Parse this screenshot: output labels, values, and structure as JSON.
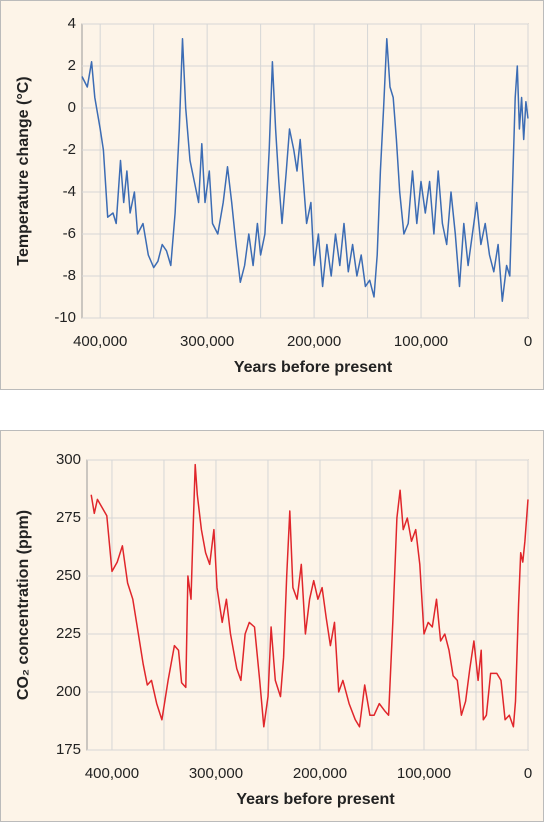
{
  "chart_data": [
    {
      "type": "line",
      "ylabel": "Temperature change (°C)",
      "xlabel": "Years before present",
      "xlim": [
        417000,
        0
      ],
      "ylim": [
        -10,
        4
      ],
      "xticks": [
        {
          "value": 400000,
          "label": "400,000"
        },
        {
          "value": 300000,
          "label": "300,000"
        },
        {
          "value": 200000,
          "label": "200,000"
        },
        {
          "value": 100000,
          "label": "100,000"
        },
        0
      ],
      "yticks": [
        4,
        2,
        0,
        -2,
        -4,
        -6,
        -8,
        -10
      ],
      "x_minor_grid": [
        350000,
        250000,
        150000,
        50000
      ],
      "grid": true,
      "color": "#3c6cb4",
      "x": [
        417000,
        412000,
        408000,
        405000,
        400000,
        397000,
        393000,
        388000,
        385000,
        381000,
        378000,
        375000,
        372000,
        368000,
        365000,
        360000,
        355000,
        350000,
        346000,
        342000,
        338000,
        334000,
        330000,
        326000,
        323000,
        320000,
        316000,
        312000,
        308000,
        305000,
        302000,
        298000,
        295000,
        290000,
        285000,
        281000,
        277000,
        273000,
        269000,
        265000,
        261000,
        257000,
        253000,
        250000,
        246000,
        242000,
        239000,
        236000,
        233000,
        230000,
        226000,
        223000,
        219000,
        216000,
        213000,
        210000,
        207000,
        203000,
        200000,
        196000,
        192000,
        188000,
        184000,
        180000,
        176000,
        172000,
        168000,
        164000,
        160000,
        156000,
        152000,
        148000,
        144000,
        141000,
        138000,
        135000,
        132000,
        129000,
        126000,
        123000,
        120000,
        116000,
        112000,
        108000,
        104000,
        100000,
        96000,
        92000,
        88000,
        84000,
        80000,
        76000,
        72000,
        68000,
        64000,
        60000,
        56000,
        52000,
        48000,
        44000,
        40000,
        36000,
        32000,
        28000,
        24000,
        20000,
        17000,
        14000,
        12000,
        10000,
        8000,
        6000,
        4000,
        2000,
        0
      ],
      "values": [
        1.5,
        1.0,
        2.2,
        0.5,
        -1.0,
        -2.0,
        -5.2,
        -5.0,
        -5.5,
        -2.5,
        -4.5,
        -3.0,
        -5.0,
        -4.0,
        -6.0,
        -5.5,
        -7.0,
        -7.6,
        -7.3,
        -6.5,
        -6.8,
        -7.5,
        -5.0,
        -1.0,
        3.3,
        0,
        -2.5,
        -3.5,
        -4.5,
        -1.7,
        -4.5,
        -3.0,
        -5.5,
        -6.0,
        -4.5,
        -2.8,
        -4.5,
        -6.5,
        -8.3,
        -7.5,
        -6.0,
        -7.5,
        -5.5,
        -7.0,
        -6.0,
        -2.0,
        2.2,
        -1,
        -3.5,
        -5.5,
        -3.0,
        -1.0,
        -2.0,
        -3.0,
        -1.5,
        -3.5,
        -5.5,
        -4.5,
        -7.5,
        -6.0,
        -8.5,
        -6.5,
        -8.0,
        -6.0,
        -7.5,
        -5.5,
        -7.8,
        -6.5,
        -8.0,
        -7.0,
        -8.5,
        -8.2,
        -9.0,
        -7.0,
        -3.0,
        0,
        3.3,
        1.0,
        0.5,
        -1.5,
        -4.0,
        -6.0,
        -5.5,
        -3.0,
        -5.5,
        -3.5,
        -5.0,
        -3.5,
        -6.0,
        -3.0,
        -5.5,
        -6.5,
        -4.0,
        -6.0,
        -8.5,
        -5.5,
        -7.5,
        -6.0,
        -4.5,
        -6.5,
        -5.5,
        -7.0,
        -7.8,
        -6.5,
        -9.2,
        -7.5,
        -8.0,
        -3.0,
        0.5,
        2.0,
        -1,
        0.5,
        -1.5,
        0.3,
        -0.5
      ]
    },
    {
      "type": "line",
      "ylabel": "CO₂ concentration (ppm)",
      "xlabel": "Years before present",
      "xlim": [
        424000,
        0
      ],
      "ylim": [
        175,
        300
      ],
      "xticks": [
        {
          "value": 400000,
          "label": "400,000"
        },
        {
          "value": 300000,
          "label": "300,000"
        },
        {
          "value": 200000,
          "label": "200,000"
        },
        {
          "value": 100000,
          "label": "100,000"
        },
        0
      ],
      "yticks": [
        300,
        275,
        250,
        225,
        200,
        175
      ],
      "x_minor_grid": [
        350000,
        250000,
        150000,
        50000
      ],
      "grid": true,
      "color": "#e0262b",
      "x": [
        420000,
        417000,
        414000,
        405000,
        400000,
        395000,
        390000,
        385000,
        380000,
        376000,
        370000,
        366000,
        362000,
        357000,
        352000,
        346000,
        340000,
        336000,
        333000,
        329000,
        327000,
        324000,
        322000,
        320000,
        318000,
        314000,
        310000,
        306000,
        302000,
        299000,
        294000,
        290000,
        286000,
        280000,
        276000,
        272000,
        268000,
        263000,
        258000,
        254000,
        250000,
        247000,
        243000,
        238000,
        235000,
        232000,
        229000,
        226000,
        222000,
        218000,
        214000,
        210000,
        206000,
        202000,
        198000,
        194000,
        190000,
        186000,
        182000,
        178000,
        172000,
        166000,
        162000,
        157000,
        152000,
        148000,
        143000,
        138000,
        134000,
        130000,
        126000,
        123000,
        120000,
        116000,
        112000,
        108000,
        104000,
        100000,
        96000,
        92000,
        88000,
        84000,
        80000,
        76000,
        72000,
        68000,
        64000,
        60000,
        56000,
        52000,
        48000,
        45000,
        43000,
        40000,
        36000,
        30000,
        26000,
        22000,
        18000,
        14000,
        12000,
        9000,
        7000,
        5000,
        3000,
        0
      ],
      "values": [
        285,
        277,
        283,
        276,
        252,
        256,
        263,
        247,
        240,
        229,
        212,
        203,
        205,
        195,
        188,
        205,
        220,
        218,
        204,
        202,
        250,
        240,
        270,
        298,
        285,
        270,
        260,
        255,
        270,
        245,
        230,
        240,
        225,
        210,
        205,
        225,
        230,
        228,
        205,
        185,
        198,
        228,
        205,
        198,
        215,
        250,
        278,
        245,
        240,
        255,
        225,
        240,
        248,
        240,
        245,
        232,
        220,
        230,
        200,
        205,
        195,
        188,
        185,
        203,
        190,
        190,
        195,
        192,
        190,
        230,
        275,
        287,
        270,
        275,
        265,
        270,
        255,
        225,
        230,
        228,
        240,
        222,
        225,
        218,
        207,
        205,
        190,
        196,
        210,
        222,
        205,
        218,
        188,
        190,
        208,
        208,
        205,
        188,
        190,
        185,
        196,
        238,
        260,
        256,
        265,
        283
      ]
    }
  ]
}
